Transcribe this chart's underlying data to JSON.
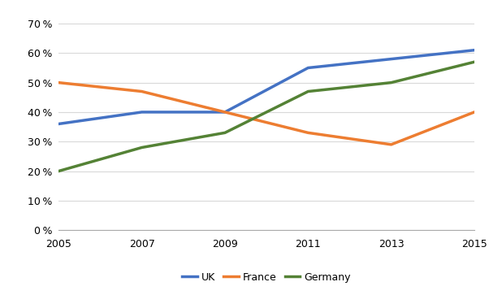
{
  "years": [
    2005,
    2007,
    2009,
    2011,
    2013,
    2015
  ],
  "UK": [
    0.36,
    0.4,
    0.4,
    0.55,
    0.58,
    0.61
  ],
  "France": [
    0.5,
    0.47,
    0.4,
    0.33,
    0.29,
    0.4
  ],
  "Germany": [
    0.2,
    0.28,
    0.33,
    0.47,
    0.5,
    0.57
  ],
  "UK_color": "#4472C4",
  "France_color": "#ED7D31",
  "Germany_color": "#548235",
  "linewidth": 2.5,
  "ylim": [
    0.0,
    0.75
  ],
  "yticks": [
    0.0,
    0.1,
    0.2,
    0.3,
    0.4,
    0.5,
    0.6,
    0.7
  ],
  "xticks": [
    2005,
    2007,
    2009,
    2011,
    2013,
    2015
  ],
  "legend_labels": [
    "UK",
    "France",
    "Germany"
  ],
  "grid_color": "#d9d9d9",
  "background_color": "#ffffff"
}
